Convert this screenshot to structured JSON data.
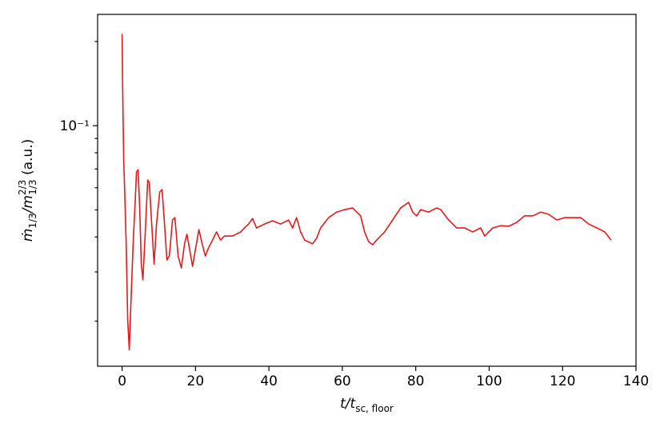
{
  "chart_data": {
    "type": "line",
    "xlabel": [
      {
        "text": "t/t",
        "style": "italic"
      },
      {
        "text": "sc, floor",
        "style": "sub"
      }
    ],
    "ylabel": [
      {
        "text": "ṁ",
        "style": "italic"
      },
      {
        "text": "1/3",
        "style": "sub"
      },
      {
        "text": "/m",
        "style": "italic"
      },
      {
        "text": "2/3",
        "style": "sup"
      },
      {
        "text": "1/3",
        "style": "sub"
      },
      {
        "text": " (a.u.)",
        "style": "normal"
      }
    ],
    "xlim": [
      -6.67,
      140
    ],
    "ylim": [
      0.0138,
      0.25
    ],
    "xticks": [
      0,
      20,
      40,
      60,
      80,
      100,
      120,
      140
    ],
    "yticks": [
      {
        "value": 0.1,
        "label": "10⁻¹"
      }
    ],
    "yminorticks": [
      0.02,
      0.03,
      0.04,
      0.05,
      0.06,
      0.07,
      0.08,
      0.09,
      0.2
    ],
    "yscale": "log",
    "color": "#e41a1c",
    "x": [
      0,
      0.22,
      0.44,
      0.65,
      1.09,
      1.53,
      1.96,
      2.4,
      3.05,
      3.49,
      3.92,
      4.36,
      4.8,
      5.23,
      5.67,
      6.32,
      6.98,
      7.41,
      8.07,
      8.72,
      9.38,
      10.25,
      10.9,
      11.56,
      12.21,
      12.87,
      13.74,
      14.39,
      15.26,
      16.14,
      17.01,
      17.66,
      18.32,
      19.19,
      20.06,
      20.93,
      21.81,
      22.68,
      23.55,
      24.64,
      25.73,
      26.82,
      27.91,
      30.09,
      32.27,
      33.36,
      34.45,
      35.54,
      36.63,
      38.81,
      40.99,
      43.18,
      45.36,
      46.45,
      47.54,
      48.63,
      49.72,
      51.9,
      52.99,
      54.08,
      56.26,
      58.44,
      60.62,
      62.8,
      64.98,
      66.07,
      67.16,
      68.25,
      69.34,
      71.52,
      73.7,
      75.88,
      78.06,
      79.15,
      80.24,
      81.33,
      83.51,
      85.7,
      86.79,
      88.97,
      91.15,
      93.33,
      95.51,
      97.69,
      98.78,
      100.96,
      103.14,
      105.32,
      107.5,
      109.68,
      111.86,
      114.04,
      116.22,
      118.4,
      120.58,
      122.76,
      124.94,
      127.13,
      129.31,
      131.49,
      133.23
    ],
    "values": [
      0.213,
      0.119,
      0.0754,
      0.0619,
      0.039,
      0.0202,
      0.0158,
      0.0231,
      0.039,
      0.0508,
      0.0683,
      0.0696,
      0.0508,
      0.032,
      0.0281,
      0.0417,
      0.0639,
      0.0627,
      0.0445,
      0.032,
      0.0445,
      0.0579,
      0.0591,
      0.0445,
      0.0331,
      0.0342,
      0.046,
      0.0469,
      0.0342,
      0.031,
      0.0378,
      0.0409,
      0.0366,
      0.0314,
      0.0366,
      0.0425,
      0.0378,
      0.0342,
      0.0366,
      0.039,
      0.0417,
      0.039,
      0.0403,
      0.0403,
      0.0417,
      0.0431,
      0.0445,
      0.0466,
      0.0431,
      0.0445,
      0.0457,
      0.0445,
      0.046,
      0.0431,
      0.0469,
      0.0417,
      0.039,
      0.0378,
      0.0396,
      0.0431,
      0.0469,
      0.0491,
      0.0501,
      0.0508,
      0.0476,
      0.0417,
      0.0385,
      0.0375,
      0.039,
      0.0417,
      0.046,
      0.0508,
      0.0532,
      0.0491,
      0.0476,
      0.0501,
      0.0491,
      0.0508,
      0.0501,
      0.046,
      0.0431,
      0.0431,
      0.0417,
      0.0431,
      0.0403,
      0.0431,
      0.0439,
      0.0437,
      0.0451,
      0.0476,
      0.0476,
      0.0491,
      0.0482,
      0.046,
      0.0469,
      0.0469,
      0.0469,
      0.0445,
      0.0431,
      0.0417,
      0.039
    ]
  }
}
